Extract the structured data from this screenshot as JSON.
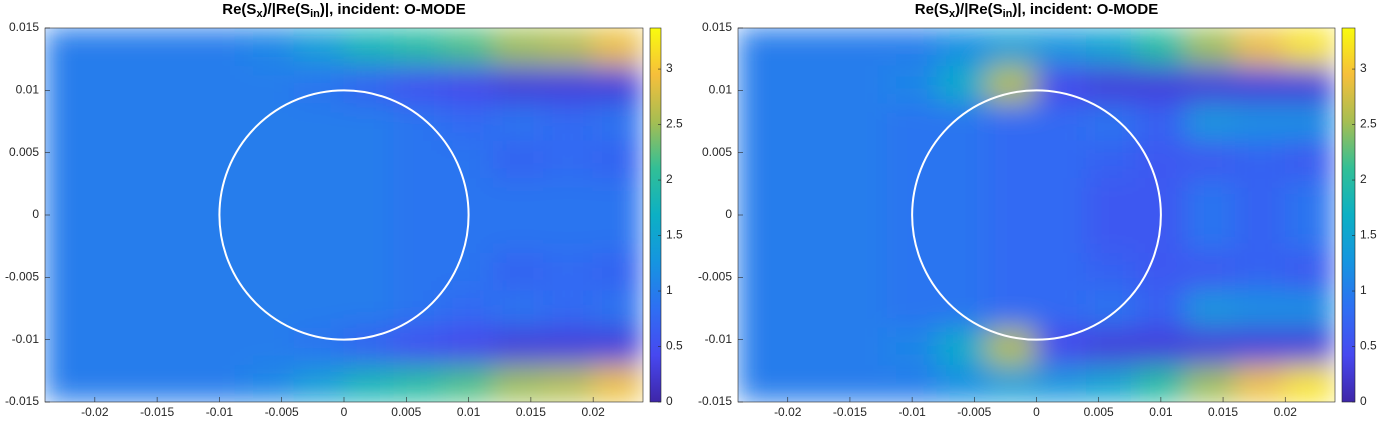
{
  "chart_data": [
    {
      "type": "heatmap",
      "title": [
        "Re(S",
        "x",
        ")/|Re(S",
        "in",
        ")|, incident: O-MODE"
      ],
      "x": [
        -0.022,
        -0.018,
        -0.014,
        -0.01,
        -0.006,
        -0.002,
        0.002,
        0.006,
        0.01,
        0.014,
        0.018,
        0.022
      ],
      "y": [
        -0.0135,
        -0.0105,
        -0.0075,
        -0.0045,
        -0.0015,
        0.0015,
        0.0045,
        0.0075,
        0.0105,
        0.0135
      ],
      "z": [
        [
          1,
          1,
          1,
          1,
          1.1,
          1.4,
          1.8,
          2.0,
          2.2,
          2.5,
          2.6,
          2.9
        ],
        [
          1,
          1,
          1,
          1,
          1,
          0.9,
          0.7,
          0.5,
          0.4,
          0.3,
          0.3,
          0.3
        ],
        [
          1,
          1,
          1,
          1,
          1,
          1,
          1,
          0.9,
          0.8,
          0.9,
          0.8,
          0.9
        ],
        [
          1,
          1,
          1,
          1,
          1,
          1,
          1,
          0.9,
          0.9,
          0.7,
          0.8,
          0.7
        ],
        [
          1,
          1,
          1,
          1,
          1,
          1,
          1,
          0.9,
          0.9,
          0.9,
          0.9,
          0.9
        ],
        [
          1,
          1,
          1,
          1,
          1,
          1,
          1,
          0.9,
          0.9,
          0.9,
          0.9,
          0.9
        ],
        [
          1,
          1,
          1,
          1,
          1,
          1,
          1,
          0.9,
          0.9,
          0.7,
          0.8,
          0.7
        ],
        [
          1,
          1,
          1,
          1,
          1,
          1,
          1,
          0.9,
          0.8,
          0.9,
          0.8,
          0.9
        ],
        [
          1,
          1,
          1,
          1,
          1,
          0.9,
          0.7,
          0.5,
          0.4,
          0.3,
          0.3,
          0.3
        ],
        [
          1,
          1,
          1,
          1,
          1.1,
          1.4,
          1.8,
          2.0,
          2.2,
          2.5,
          2.6,
          2.9
        ]
      ],
      "xlim": [
        -0.024,
        0.024
      ],
      "ylim": [
        -0.015,
        0.015
      ],
      "xticks": [
        -0.02,
        -0.015,
        -0.01,
        -0.005,
        0,
        0.005,
        0.01,
        0.015,
        0.02
      ],
      "yticks": [
        -0.015,
        -0.01,
        -0.005,
        0,
        0.005,
        0.01,
        0.015
      ],
      "clim": [
        0,
        3.37
      ],
      "cticks": [
        0,
        0.5,
        1,
        1.5,
        2,
        2.5,
        3
      ],
      "colormap": [
        "#3e26a8",
        "#4748f0",
        "#2e6ff3",
        "#1595e0",
        "#0cb0c4",
        "#32bf96",
        "#a6be52",
        "#f6bf3b",
        "#f9fb0e"
      ],
      "circle": {
        "center": [
          0,
          0
        ],
        "radius": 0.01,
        "color": "#ffffff"
      }
    },
    {
      "type": "heatmap",
      "title": [
        "Re(S",
        "x",
        ")/|Re(S",
        "in",
        ")|, incident: O-MODE"
      ],
      "x": [
        -0.022,
        -0.018,
        -0.014,
        -0.01,
        -0.006,
        -0.002,
        0.002,
        0.006,
        0.01,
        0.014,
        0.018,
        0.022
      ],
      "y": [
        -0.0135,
        -0.0105,
        -0.0075,
        -0.0045,
        -0.0015,
        0.0015,
        0.0045,
        0.0075,
        0.0105,
        0.0135
      ],
      "z": [
        [
          1,
          1,
          1,
          1,
          1.2,
          1.4,
          1.3,
          1.5,
          2.0,
          2.5,
          2.9,
          3.2
        ],
        [
          1,
          1,
          1,
          1.1,
          1.6,
          2.6,
          0.4,
          0.3,
          0.3,
          0.3,
          0.3,
          0.3
        ],
        [
          1,
          1,
          1,
          0.9,
          0.9,
          0.8,
          0.8,
          0.9,
          0.7,
          1.3,
          1.2,
          1.2
        ],
        [
          1,
          1,
          1,
          0.9,
          0.9,
          0.8,
          0.8,
          0.7,
          0.6,
          0.6,
          0.7,
          0.6
        ],
        [
          1,
          1,
          1,
          0.9,
          0.9,
          0.8,
          0.8,
          0.6,
          0.6,
          0.9,
          0.7,
          0.9
        ],
        [
          1,
          1,
          1,
          0.9,
          0.9,
          0.8,
          0.8,
          0.6,
          0.6,
          0.9,
          0.7,
          0.9
        ],
        [
          1,
          1,
          1,
          0.9,
          0.9,
          0.8,
          0.8,
          0.7,
          0.6,
          0.6,
          0.7,
          0.6
        ],
        [
          1,
          1,
          1,
          0.9,
          0.9,
          0.8,
          0.8,
          0.9,
          0.7,
          1.3,
          1.2,
          1.2
        ],
        [
          1,
          1,
          1,
          1.1,
          1.6,
          2.6,
          0.4,
          0.3,
          0.3,
          0.3,
          0.3,
          0.3
        ],
        [
          1,
          1,
          1,
          1,
          1.2,
          1.4,
          1.3,
          1.5,
          2.0,
          2.5,
          2.9,
          3.2
        ]
      ],
      "xlim": [
        -0.024,
        0.024
      ],
      "ylim": [
        -0.015,
        0.015
      ],
      "xticks": [
        -0.02,
        -0.015,
        -0.01,
        -0.005,
        0,
        0.005,
        0.01,
        0.015,
        0.02
      ],
      "yticks": [
        -0.015,
        -0.01,
        -0.005,
        0,
        0.005,
        0.01,
        0.015
      ],
      "clim": [
        0,
        3.37
      ],
      "cticks": [
        0,
        0.5,
        1,
        1.5,
        2,
        2.5,
        3
      ],
      "colormap": [
        "#3e26a8",
        "#4748f0",
        "#2e6ff3",
        "#1595e0",
        "#0cb0c4",
        "#32bf96",
        "#a6be52",
        "#f6bf3b",
        "#f9fb0e"
      ],
      "circle": {
        "center": [
          0,
          0
        ],
        "radius": 0.01,
        "color": "#ffffff"
      }
    }
  ]
}
